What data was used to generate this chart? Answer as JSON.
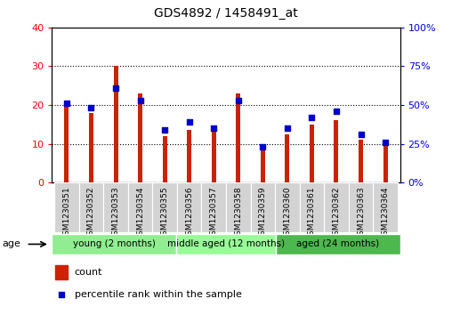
{
  "title": "GDS4892 / 1458491_at",
  "samples": [
    "GSM1230351",
    "GSM1230352",
    "GSM1230353",
    "GSM1230354",
    "GSM1230355",
    "GSM1230356",
    "GSM1230357",
    "GSM1230358",
    "GSM1230359",
    "GSM1230360",
    "GSM1230361",
    "GSM1230362",
    "GSM1230363",
    "GSM1230364"
  ],
  "counts": [
    20,
    18,
    30,
    23,
    12,
    13.5,
    13,
    23,
    10,
    12.5,
    15,
    16,
    11,
    10
  ],
  "percentiles": [
    51,
    48,
    61,
    53,
    34,
    39,
    35,
    53,
    23,
    35,
    42,
    46,
    31,
    26
  ],
  "groups": [
    {
      "label": "young (2 months)",
      "start": 0,
      "end": 5,
      "color": "#90EE90"
    },
    {
      "label": "middle aged (12 months)",
      "start": 5,
      "end": 9,
      "color": "#98FB98"
    },
    {
      "label": "aged (24 months)",
      "start": 9,
      "end": 14,
      "color": "#4DB84D"
    }
  ],
  "bar_color": "#CC2200",
  "dot_color": "#0000CC",
  "left_ylim": [
    0,
    40
  ],
  "right_ylim": [
    0,
    100
  ],
  "left_yticks": [
    0,
    10,
    20,
    30,
    40
  ],
  "right_yticks": [
    0,
    25,
    50,
    75,
    100
  ],
  "right_yticklabels": [
    "0%",
    "25%",
    "50%",
    "75%",
    "100%"
  ],
  "grid_values": [
    10,
    20,
    30
  ],
  "age_label": "age",
  "label_bg": "#D3D3D3",
  "plot_bg": "#FFFFFF",
  "bar_width": 0.18,
  "dot_size": 18
}
